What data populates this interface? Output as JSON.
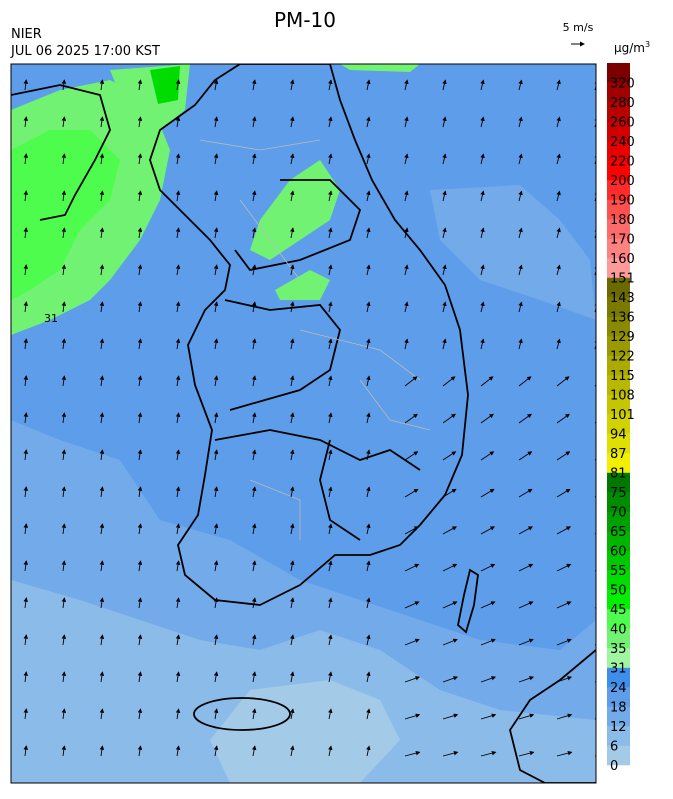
{
  "header": {
    "title": "PM-10",
    "agency": "NIER",
    "timestamp": "JUL 06 2025 17:00 KST",
    "vector_scale": "5 m/s"
  },
  "map": {
    "contour_label": "31"
  },
  "legend": {
    "unit": "μg/m",
    "unit_exponent": "3",
    "levels": [
      0,
      6,
      12,
      18,
      24,
      31,
      35,
      40,
      45,
      50,
      55,
      60,
      65,
      70,
      75,
      81,
      87,
      94,
      101,
      108,
      115,
      122,
      129,
      136,
      143,
      151,
      160,
      170,
      180,
      190,
      200,
      220,
      240,
      260,
      280,
      320
    ],
    "colors": [
      "#a3cbe8",
      "#8bbbe9",
      "#72aaea",
      "#5d9de9",
      "#3f8ee8",
      "#a0f5a0",
      "#72f272",
      "#4dfc4d",
      "#00f000",
      "#00dc00",
      "#00c800",
      "#00b400",
      "#00a000",
      "#008c00",
      "#007800",
      "#f0f000",
      "#e0e000",
      "#d2d200",
      "#c6c600",
      "#b8b800",
      "#aaaa00",
      "#9a9a00",
      "#8a8a00",
      "#7a7a00",
      "#6a6a00",
      "#ff9a9a",
      "#ff8282",
      "#ff6a6a",
      "#ff5050",
      "#ff2a2a",
      "#ff0000",
      "#e80000",
      "#d00000",
      "#b80000",
      "#a00000",
      "#7a0000"
    ]
  }
}
